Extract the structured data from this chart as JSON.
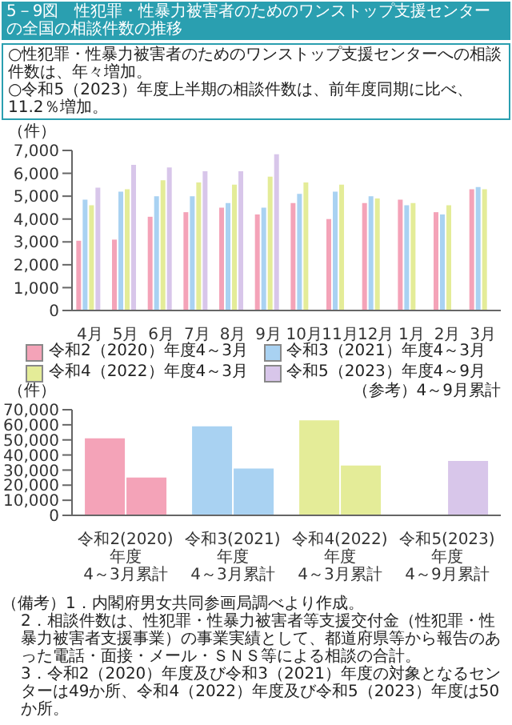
{
  "chart_data": [
    {
      "type": "bar",
      "title": "5－9図　性犯罪・性暴力被害者のためのワンストップ支援センターの全国の相談件数の推移",
      "subtitle": "○性犯罪・性暴力被害者のためのワンストップ支援センターへの相談件数は、年々増加。\n○令和5（2023）年度上半期の相談件数は、前年度同期に比べ、11.2％増加。",
      "ylabel": "（件）",
      "categories": [
        "4月",
        "5月",
        "6月",
        "7月",
        "8月",
        "9月",
        "10月",
        "11月",
        "12月",
        "1月",
        "2月",
        "3月"
      ],
      "series": [
        {
          "name": "令和2（2020）年度4～3月",
          "color": "#f4a3b8",
          "values": [
            3050,
            3100,
            4100,
            4300,
            4500,
            4200,
            4700,
            4000,
            4700,
            4850,
            4300,
            5300
          ]
        },
        {
          "name": "令和3（2021）年度4～3月",
          "color": "#a9d2f2",
          "values": [
            4850,
            5200,
            5000,
            5000,
            4700,
            4500,
            5100,
            5200,
            5000,
            4600,
            4200,
            5400
          ]
        },
        {
          "name": "令和4（2022）年度4～3月",
          "color": "#e4ec98",
          "values": [
            4600,
            5300,
            5700,
            5600,
            5500,
            5850,
            5600,
            5500,
            4900,
            4700,
            4600,
            5300
          ]
        },
        {
          "name": "令和5（2023）年度4～9月",
          "color": "#d8c6ea",
          "values": [
            5370,
            6370,
            6260,
            6090,
            6090,
            6830,
            null,
            null,
            null,
            null,
            null,
            null
          ]
        }
      ],
      "ylim": [
        0,
        7000
      ],
      "yticks": [
        0,
        {
          "value": 1000,
          "label": "1,000"
        },
        {
          "value": 2000,
          "label": "2,000"
        },
        {
          "value": 3000,
          "label": "3,000"
        },
        {
          "value": 4000,
          "label": "4,000"
        },
        {
          "value": 5000,
          "label": "5,000"
        },
        {
          "value": 6000,
          "label": "6,000"
        },
        {
          "value": 7000,
          "label": "7,000"
        }
      ],
      "legend": "bottom",
      "annotations": [
        "（備考）1．内閣府男女共同参画局調べより作成。",
        "2．相談件数は、性犯罪・性暴力被害者等支援交付金（性犯罪・性暴力被害者支援事業）の事業実績として、都道府県等から報告のあった電話・面接・メール・ＳＮＳ等による相談の合計。",
        "3．令和2（2020）年度及び令和3（2021）年度の対象となるセンターは49か所、令和4（2022）年度及び令和5（2023）年度は50か所。"
      ]
    },
    {
      "type": "bar",
      "ylabel": "（件）",
      "categories": [
        "令和2(2020)\n年度\n4～3月累計",
        "令和3(2021)\n年度\n4～3月累計",
        "令和4(2022)\n年度\n4～3月累計",
        "令和5(2023)\n年度\n4～9月累計"
      ],
      "series": [
        {
          "colors": [
            "#f4a3b8",
            "#a9d2f2",
            "#e4ec98",
            "#d8c6ea"
          ],
          "values": [
            51000,
            59000,
            63000,
            null
          ]
        },
        {
          "colors": [
            "#f4a3b8",
            "#a9d2f2",
            "#e4ec98",
            "#d8c6ea"
          ],
          "values": [
            25000,
            31000,
            33000,
            36000
          ]
        }
      ],
      "ylim": [
        0,
        70000
      ],
      "yticks": [
        0,
        {
          "value": 10000,
          "label": "10,000"
        },
        {
          "value": 20000,
          "label": "20,000"
        },
        {
          "value": 30000,
          "label": "30,000"
        },
        {
          "value": 40000,
          "label": "40,000"
        },
        {
          "value": 50000,
          "label": "50,000"
        },
        {
          "value": 60000,
          "label": "60,000"
        },
        {
          "value": 70000,
          "label": "70,000"
        }
      ],
      "annotations": [
        "（参考）4～9月累計"
      ]
    }
  ]
}
